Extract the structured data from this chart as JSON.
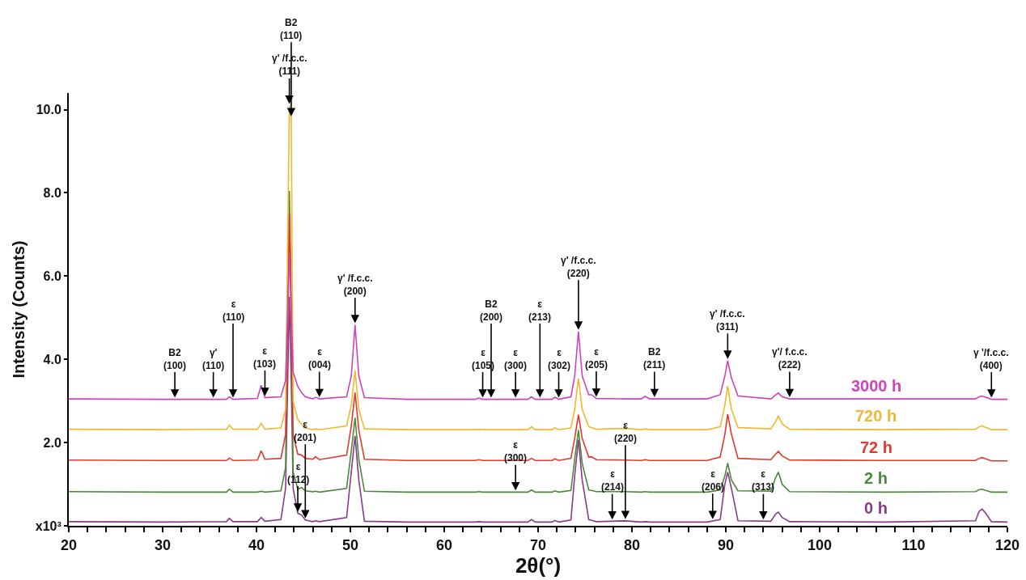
{
  "chart_data": {
    "type": "line",
    "xlabel": "2θ(°)",
    "ylabel": "Intensity (Counts)",
    "xlim": [
      20,
      120
    ],
    "ylim": [
      0,
      10.4
    ],
    "xticks": [
      20,
      {
        "value": 22,
        "label": null
      },
      {
        "value": 24,
        "label": null
      },
      {
        "value": 26,
        "label": null
      },
      {
        "value": 28,
        "label": null
      },
      30,
      {
        "value": 32,
        "label": null
      },
      {
        "value": 34,
        "label": null
      },
      {
        "value": 36,
        "label": null
      },
      {
        "value": 38,
        "label": null
      },
      40,
      {
        "value": 42,
        "label": null
      },
      {
        "value": 44,
        "label": null
      },
      {
        "value": 46,
        "label": null
      },
      {
        "value": 48,
        "label": null
      },
      50,
      {
        "value": 52,
        "label": null
      },
      {
        "value": 54,
        "label": null
      },
      {
        "value": 56,
        "label": null
      },
      {
        "value": 58,
        "label": null
      },
      60,
      {
        "value": 62,
        "label": null
      },
      {
        "value": 64,
        "label": null
      },
      {
        "value": 66,
        "label": null
      },
      {
        "value": 68,
        "label": null
      },
      70,
      {
        "value": 72,
        "label": null
      },
      {
        "value": 74,
        "label": null
      },
      {
        "value": 76,
        "label": null
      },
      {
        "value": 78,
        "label": null
      },
      80,
      {
        "value": 82,
        "label": null
      },
      {
        "value": 84,
        "label": null
      },
      {
        "value": 86,
        "label": null
      },
      {
        "value": 88,
        "label": null
      },
      90,
      {
        "value": 92,
        "label": null
      },
      {
        "value": 94,
        "label": null
      },
      {
        "value": 96,
        "label": null
      },
      {
        "value": 98,
        "label": null
      },
      100,
      {
        "value": 102,
        "label": null
      },
      {
        "value": 104,
        "label": null
      },
      {
        "value": 106,
        "label": null
      },
      {
        "value": 108,
        "label": null
      },
      110,
      {
        "value": 112,
        "label": null
      },
      {
        "value": 114,
        "label": null
      },
      {
        "value": 116,
        "label": null
      },
      {
        "value": 118,
        "label": null
      },
      120
    ],
    "yticks": [
      {
        "value": 0,
        "label": "x10³"
      },
      {
        "value": 2,
        "label": "2.0"
      },
      {
        "value": 4,
        "label": "4.0"
      },
      {
        "value": 6,
        "label": "6.0"
      },
      {
        "value": 8,
        "label": "8.0"
      },
      {
        "value": 10,
        "label": "10.0"
      }
    ],
    "grid": false,
    "marker": "none",
    "line_style": "solid",
    "x": [
      20,
      30,
      36.8,
      37.1,
      37.5,
      40.1,
      40.5,
      40.9,
      42.6,
      43.1,
      43.5,
      43.7,
      43.9,
      44.4,
      44.8,
      45.2,
      46.0,
      46.3,
      46.7,
      49.6,
      50.1,
      50.5,
      50.9,
      51.5,
      56,
      63.3,
      63.7,
      64.1,
      68.9,
      69.3,
      69.7,
      71.5,
      71.8,
      72.2,
      73.5,
      73.9,
      74.3,
      74.7,
      75.4,
      75.7,
      76.2,
      79.3,
      81.0,
      81.4,
      81.9,
      88,
      89.4,
      89.9,
      90.2,
      90.6,
      91.3,
      94.8,
      95.3,
      95.6,
      96.0,
      96.8,
      107,
      116.6,
      117.0,
      117.3,
      117.7,
      118.3,
      120
    ],
    "series": [
      {
        "name": "3000 h",
        "color": "#cc44bb",
        "values": [
          3.05,
          3.04,
          3.04,
          3.1,
          3.04,
          3.06,
          3.38,
          3.08,
          3.1,
          3.5,
          6.5,
          5.2,
          3.7,
          3.35,
          3.2,
          3.1,
          3.05,
          3.09,
          3.05,
          3.1,
          3.6,
          4.83,
          3.6,
          3.08,
          3.04,
          3.04,
          3.07,
          3.04,
          3.04,
          3.1,
          3.04,
          3.04,
          3.09,
          3.04,
          3.1,
          3.6,
          4.67,
          3.6,
          3.15,
          3.15,
          3.06,
          3.05,
          3.05,
          3.11,
          3.05,
          3.05,
          3.15,
          3.6,
          3.97,
          3.55,
          3.12,
          3.05,
          3.14,
          3.19,
          3.1,
          3.05,
          3.05,
          3.05,
          3.1,
          3.12,
          3.09,
          3.04,
          3.04
        ]
      },
      {
        "name": "720 h",
        "color": "#f0b830",
        "values": [
          2.32,
          2.31,
          2.32,
          2.42,
          2.32,
          2.32,
          2.46,
          2.32,
          2.35,
          2.8,
          10.1,
          9.8,
          3.0,
          2.55,
          2.45,
          2.35,
          2.31,
          2.33,
          2.31,
          2.4,
          2.9,
          3.73,
          2.8,
          2.33,
          2.31,
          2.31,
          2.32,
          2.31,
          2.31,
          2.38,
          2.31,
          2.31,
          2.36,
          2.31,
          2.35,
          2.8,
          3.54,
          2.8,
          2.38,
          2.36,
          2.32,
          2.34,
          2.31,
          2.33,
          2.31,
          2.31,
          2.38,
          2.9,
          3.36,
          2.8,
          2.36,
          2.33,
          2.5,
          2.64,
          2.45,
          2.32,
          2.31,
          2.32,
          2.38,
          2.4,
          2.36,
          2.31,
          2.31
        ]
      },
      {
        "name": "72 h",
        "color": "#e03a30",
        "values": [
          1.58,
          1.57,
          1.57,
          1.63,
          1.57,
          1.58,
          1.8,
          1.6,
          1.62,
          2.2,
          7.5,
          5.0,
          2.2,
          1.72,
          1.7,
          1.62,
          1.6,
          1.66,
          1.59,
          1.7,
          2.4,
          3.2,
          2.3,
          1.6,
          1.57,
          1.57,
          1.59,
          1.57,
          1.57,
          1.62,
          1.57,
          1.57,
          1.61,
          1.57,
          1.62,
          2.1,
          2.67,
          2.1,
          1.65,
          1.66,
          1.59,
          1.58,
          1.57,
          1.59,
          1.57,
          1.57,
          1.65,
          2.2,
          2.68,
          2.2,
          1.62,
          1.59,
          1.72,
          1.79,
          1.68,
          1.58,
          1.57,
          1.57,
          1.62,
          1.64,
          1.61,
          1.56,
          1.56
        ]
      },
      {
        "name": "2 h",
        "color": "#4a8a3a",
        "values": [
          0.82,
          0.81,
          0.81,
          0.88,
          0.81,
          0.81,
          0.83,
          0.81,
          0.84,
          1.4,
          8.05,
          5.5,
          1.3,
          0.88,
          0.92,
          0.84,
          0.82,
          0.83,
          0.81,
          0.9,
          1.8,
          2.6,
          1.6,
          0.83,
          0.81,
          0.81,
          0.82,
          0.81,
          0.81,
          0.86,
          0.81,
          0.81,
          0.84,
          0.81,
          0.85,
          1.6,
          2.3,
          1.5,
          0.86,
          0.85,
          0.82,
          0.82,
          0.81,
          0.82,
          0.81,
          0.81,
          0.86,
          1.2,
          1.51,
          1.1,
          0.84,
          0.83,
          1.15,
          1.29,
          1.0,
          0.82,
          0.81,
          0.82,
          0.87,
          0.88,
          0.85,
          0.81,
          0.81
        ]
      },
      {
        "name": "0 h",
        "color": "#8a3a8a",
        "values": [
          0.1,
          0.09,
          0.1,
          0.18,
          0.1,
          0.1,
          0.2,
          0.11,
          0.15,
          0.9,
          5.5,
          3.5,
          0.9,
          0.3,
          0.26,
          0.14,
          0.1,
          0.12,
          0.1,
          0.2,
          1.3,
          2.16,
          1.1,
          0.11,
          0.09,
          0.09,
          0.1,
          0.09,
          0.09,
          0.15,
          0.09,
          0.09,
          0.13,
          0.09,
          0.14,
          1.2,
          2.07,
          1.1,
          0.15,
          0.13,
          0.1,
          0.12,
          0.09,
          0.1,
          0.09,
          0.09,
          0.15,
          1.0,
          1.29,
          0.9,
          0.12,
          0.11,
          0.28,
          0.33,
          0.2,
          0.1,
          0.09,
          0.12,
          0.35,
          0.4,
          0.3,
          0.1,
          0.09
        ]
      }
    ],
    "annotations": [
      {
        "text": "γ' /f.c.c.\n(111)",
        "x": 43.5,
        "y": 10.1
      },
      {
        "text": "B2\n(110)",
        "x": 43.7,
        "y": 9.8
      },
      {
        "text": "B2\n(100)",
        "x": 31.3,
        "y": 3.04
      },
      {
        "text": "γ'\n(110)",
        "x": 35.4,
        "y": 3.04
      },
      {
        "text": "ε\n(110)",
        "x": 37.5,
        "y": 3.04
      },
      {
        "text": "ε\n(103)",
        "x": 40.9,
        "y": 3.08
      },
      {
        "text": "ε\n(004)",
        "x": 46.7,
        "y": 3.05
      },
      {
        "text": "γ' /f.c.c.\n(200)",
        "x": 50.5,
        "y": 4.83
      },
      {
        "text": "ε\n(105)",
        "x": 64.1,
        "y": 3.04
      },
      {
        "text": "B2\n(200)",
        "x": 65.0,
        "y": 3.04
      },
      {
        "text": "ε\n(300)",
        "x": 67.6,
        "y": 3.04
      },
      {
        "text": "ε\n(213)",
        "x": 70.2,
        "y": 3.04
      },
      {
        "text": "ε\n(302)",
        "x": 72.2,
        "y": 3.04
      },
      {
        "text": "γ' /f.c.c.\n(220)",
        "x": 74.3,
        "y": 4.67
      },
      {
        "text": "ε\n(205)",
        "x": 76.2,
        "y": 3.06
      },
      {
        "text": "B2\n(211)",
        "x": 82.4,
        "y": 3.05
      },
      {
        "text": "γ' /f.c.c.\n(311)",
        "x": 90.2,
        "y": 3.97
      },
      {
        "text": "γ'/ f.c.c.\n(222)",
        "x": 96.8,
        "y": 3.05
      },
      {
        "text": "γ '/f.c.c.\n(400)",
        "x": 118.3,
        "y": 3.04
      },
      {
        "text": "ε\n(300)",
        "x": 67.6,
        "y": 0.81
      },
      {
        "text": "ε\n(112)",
        "x": 44.4,
        "y": 0.3
      },
      {
        "text": "ε\n(201)",
        "x": 45.2,
        "y": 0.14
      },
      {
        "text": "ε\n(214)",
        "x": 77.9,
        "y": 0.11
      },
      {
        "text": "ε\n(220)",
        "x": 79.3,
        "y": 0.12
      },
      {
        "text": "ε\n(206)",
        "x": 88.6,
        "y": 0.12
      },
      {
        "text": "ε\n(313)",
        "x": 94.0,
        "y": 0.11
      }
    ]
  }
}
